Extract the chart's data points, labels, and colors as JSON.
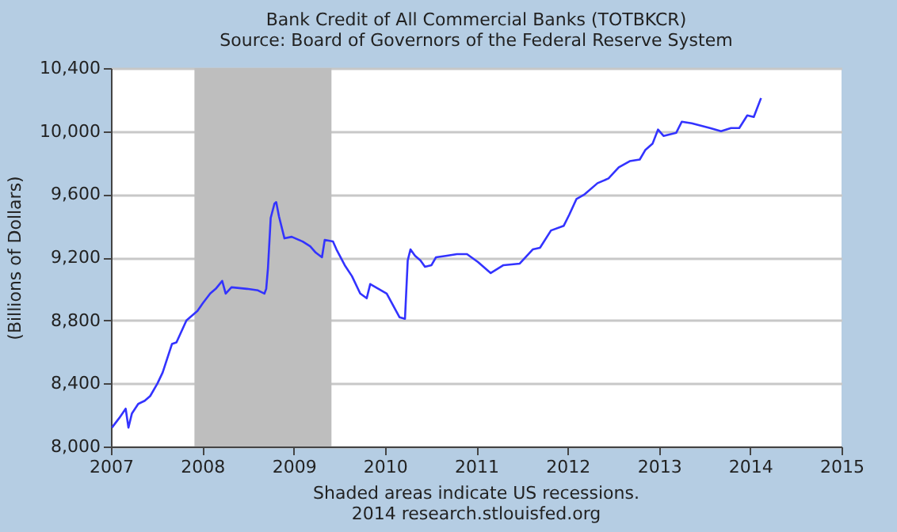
{
  "chart_data": {
    "type": "line",
    "title": "Bank Credit of All Commercial Banks (TOTBKCR)",
    "subtitle": "Source: Board of Governors of the Federal Reserve System",
    "ylabel": "(Billions of Dollars)",
    "annotations": [
      "Shaded areas indicate US recessions.",
      "2014 research.stlouisfed.org"
    ],
    "x": [
      "2007-01-05",
      "2007-02-03",
      "2007-03-01",
      "2007-03-12",
      "2007-03-26",
      "2007-04-20",
      "2007-05-16",
      "2007-06-07",
      "2007-07-06",
      "2007-07-27",
      "2007-09-02",
      "2007-09-20",
      "2007-10-30",
      "2007-12-13",
      "2008-01-04",
      "2008-02-02",
      "2008-02-24",
      "2008-03-21",
      "2008-04-04",
      "2008-04-27",
      "2008-06-28",
      "2008-08-11",
      "2008-09-06",
      "2008-09-13",
      "2008-09-20",
      "2008-10-01",
      "2008-10-16",
      "2008-10-23",
      "2008-11-03",
      "2008-11-25",
      "2008-12-24",
      "2009-02-06",
      "2009-03-08",
      "2009-03-30",
      "2009-04-24",
      "2009-05-05",
      "2009-06-07",
      "2009-06-21",
      "2009-07-24",
      "2009-08-22",
      "2009-09-24",
      "2009-10-20",
      "2009-11-03",
      "2009-12-06",
      "2010-01-08",
      "2010-02-28",
      "2010-03-22",
      "2010-04-02",
      "2010-04-13",
      "2010-05-01",
      "2010-05-23",
      "2010-06-10",
      "2010-07-06",
      "2010-07-24",
      "2010-09-06",
      "2010-10-16",
      "2010-11-25",
      "2011-01-08",
      "2011-02-28",
      "2011-04-20",
      "2011-06-24",
      "2011-08-15",
      "2011-09-13",
      "2011-10-27",
      "2011-12-17",
      "2012-01-08",
      "2012-02-06",
      "2012-03-10",
      "2012-04-30",
      "2012-06-13",
      "2012-07-24",
      "2012-09-06",
      "2012-10-16",
      "2012-11-07",
      "2012-12-06",
      "2012-12-28",
      "2013-01-19",
      "2013-03-11",
      "2013-04-02",
      "2013-05-12",
      "2013-07-24",
      "2013-09-06",
      "2013-10-16",
      "2013-11-18",
      "2013-12-20",
      "2014-01-15",
      "2014-02-13"
    ],
    "series": [
      {
        "color": "#3333ff",
        "values": [
          8120,
          8180,
          8240,
          8120,
          8210,
          8270,
          8290,
          8320,
          8400,
          8470,
          8650,
          8660,
          8800,
          8860,
          8910,
          8970,
          9000,
          9050,
          8970,
          9010,
          9000,
          8990,
          8970,
          9000,
          9130,
          9450,
          9540,
          9550,
          9460,
          9320,
          9330,
          9300,
          9270,
          9230,
          9200,
          9310,
          9300,
          9250,
          9150,
          9080,
          8970,
          8940,
          9030,
          9000,
          8970,
          8820,
          8810,
          9180,
          9250,
          9210,
          9180,
          9140,
          9150,
          9200,
          9210,
          9220,
          9220,
          9170,
          9100,
          9150,
          9160,
          9250,
          9260,
          9370,
          9400,
          9470,
          9570,
          9600,
          9670,
          9700,
          9770,
          9810,
          9820,
          9880,
          9920,
          10010,
          9970,
          9990,
          10060,
          10050,
          10020,
          10000,
          10020,
          10020,
          10100,
          10090,
          10210
        ]
      }
    ],
    "xlim": [
      "2007-01-01",
      "2015-01-01"
    ],
    "xticks": [
      "2007",
      "2008",
      "2009",
      "2010",
      "2011",
      "2012",
      "2013",
      "2014",
      "2015"
    ],
    "ylim": [
      8000,
      10400
    ],
    "yticks": [
      {
        "value": 8000,
        "label": "8,000"
      },
      {
        "value": 8400,
        "label": "8,400"
      },
      {
        "value": 8800,
        "label": "8,800"
      },
      {
        "value": 9200,
        "label": "9,200"
      },
      {
        "value": 9600,
        "label": "9,600"
      },
      {
        "value": 10000,
        "label": "10,000"
      },
      {
        "value": 10400,
        "label": "10,400"
      }
    ],
    "bands": [
      {
        "axis": "x",
        "from": "2007-12-01",
        "to": "2009-06-01",
        "color": "#bebebe"
      }
    ],
    "grid": "y"
  }
}
